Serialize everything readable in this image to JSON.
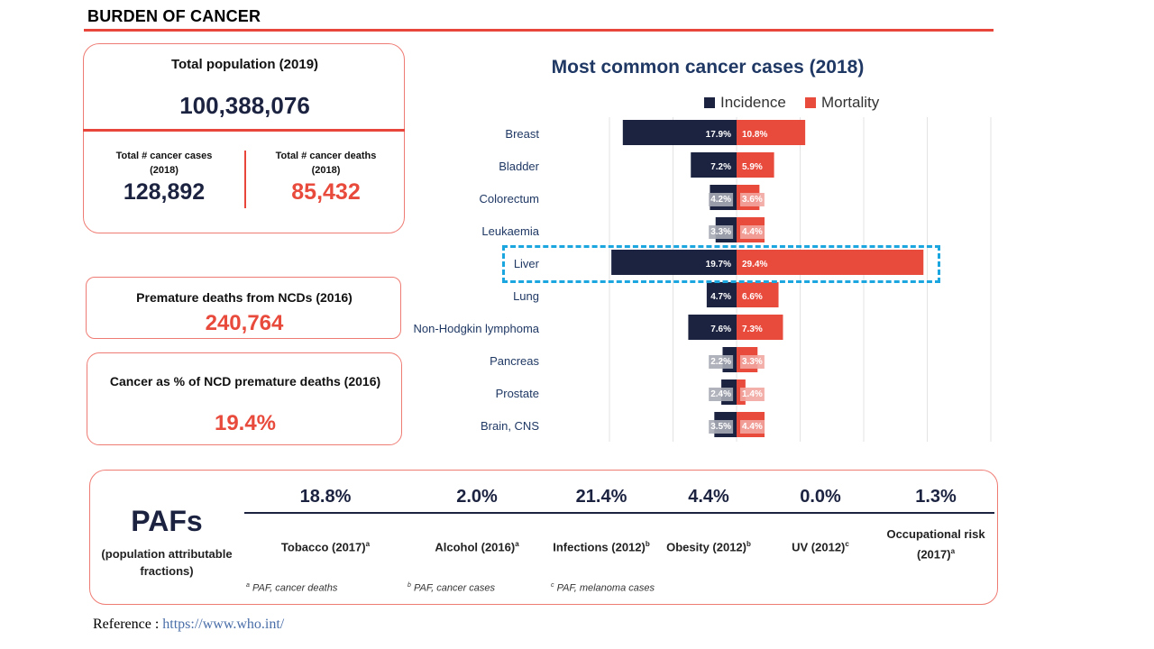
{
  "section_title": "BURDEN OF CANCER",
  "population": {
    "label": "Total population (2019)",
    "value": "100,388,076",
    "cases_label_1": "Total # cancer cases",
    "cases_label_2": "(2018)",
    "cases_value": "128,892",
    "deaths_label_1": "Total # cancer deaths",
    "deaths_label_2": "(2018)",
    "deaths_value": "85,432"
  },
  "premature": {
    "label": "Premature deaths from NCDs (2016)",
    "value": "240,764"
  },
  "ncd_pct": {
    "label": "Cancer as % of NCD premature deaths (2016)",
    "value": "19.4%"
  },
  "chart_data": {
    "type": "bar",
    "orientation": "horizontal-diverging",
    "title": "Most common cancer cases (2018)",
    "categories": [
      "Breast",
      "Bladder",
      "Colorectum",
      "Leukaemia",
      "Liver",
      "Lung",
      "Non-Hodgkin lymphoma",
      "Pancreas",
      "Prostate",
      "Brain, CNS"
    ],
    "series": [
      {
        "name": "Incidence",
        "color": "#1c2340",
        "values": [
          17.9,
          7.2,
          4.2,
          3.3,
          19.7,
          4.7,
          7.6,
          2.2,
          2.4,
          3.5
        ]
      },
      {
        "name": "Mortality",
        "color": "#e84a3c",
        "values": [
          10.8,
          5.9,
          3.6,
          4.4,
          29.4,
          6.6,
          7.3,
          3.3,
          1.4,
          4.4
        ]
      }
    ],
    "labels": {
      "incidence": [
        "17.9%",
        "7.2%",
        "4.2%",
        "3.3%",
        "19.7%",
        "4.7%",
        "7.6%",
        "2.2%",
        "2.4%",
        "3.5%"
      ],
      "mortality": [
        "10.8%",
        "5.9%",
        "3.6%",
        "4.4%",
        "29.4%",
        "6.6%",
        "7.3%",
        "3.3%",
        "1.4%",
        "4.4%"
      ]
    },
    "highlighted_category": "Liver",
    "legend_placement": "top",
    "grid": true
  },
  "pafs": {
    "heading": "PAFs",
    "subheading": "(population attributable fractions)",
    "items": [
      {
        "value": "18.8%",
        "label": "Tobacco (2017)",
        "sup": "a"
      },
      {
        "value": "2.0%",
        "label": "Alcohol (2016)",
        "sup": "a"
      },
      {
        "value": "21.4%",
        "label": "Infections (2012)",
        "sup": "b"
      },
      {
        "value": "4.4%",
        "label": "Obesity (2012)",
        "sup": "b"
      },
      {
        "value": "0.0%",
        "label": "UV (2012)",
        "sup": "c"
      },
      {
        "value": "1.3%",
        "label": "Occupational risk (2017)",
        "sup": "a"
      }
    ],
    "notes": [
      {
        "sup": "a",
        "text": "PAF, cancer deaths"
      },
      {
        "sup": "b",
        "text": "PAF, cancer cases"
      },
      {
        "sup": "c",
        "text": "PAF, melanoma cases"
      }
    ]
  },
  "reference": {
    "label": "Reference :",
    "link": "https://www.who.int/"
  }
}
